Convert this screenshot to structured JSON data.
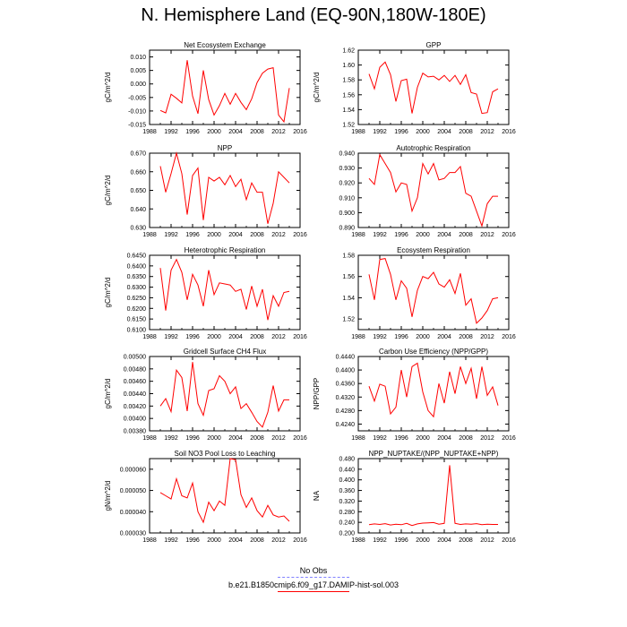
{
  "title": "N. Hemisphere Land (EQ-90N,180W-180E)",
  "legend": [
    {
      "label": "No Obs",
      "color": "#8080ff",
      "style": "dashed"
    },
    {
      "label": "b.e21.B1850cmip6.f09_g17.DAMIP-hist-sol.003",
      "color": "#ff0000",
      "style": "solid"
    }
  ],
  "chart_data": [
    {
      "type": "line",
      "title": "Net Ecosystem Exchange",
      "ylabel": "gC/m^2/d",
      "xlim": [
        1988,
        2016
      ],
      "ylim": [
        -0.015,
        0.0125
      ],
      "xticks": [
        "1988",
        "1992",
        "1996",
        "2000",
        "2004",
        "2008",
        "2012",
        "2016"
      ],
      "yticks": [
        "-0.015",
        "-0.010",
        "-0.005",
        "0.000",
        "0.005",
        "0.010"
      ],
      "yticks_values": [
        -0.015,
        -0.01,
        -0.005,
        0.0,
        0.005,
        0.01
      ],
      "series": [
        {
          "color": "#ff0000",
          "x": [
            1990,
            1991,
            1992,
            1993,
            1994,
            1995,
            1996,
            1997,
            1998,
            1999,
            2000,
            2001,
            2002,
            2003,
            2004,
            2005,
            2006,
            2007,
            2008,
            2009,
            2010,
            2011,
            2012,
            2013,
            2014
          ],
          "y": [
            -0.0098,
            -0.0107,
            -0.0038,
            -0.0053,
            -0.007,
            0.0088,
            -0.0045,
            -0.011,
            0.005,
            -0.0058,
            -0.0115,
            -0.008,
            -0.0035,
            -0.0075,
            -0.0035,
            -0.0068,
            -0.0095,
            -0.0055,
            0.0005,
            0.004,
            0.0055,
            0.006,
            -0.0115,
            -0.014,
            -0.0015
          ]
        }
      ]
    },
    {
      "type": "line",
      "title": "GPP",
      "ylabel": "gC/m^2/d",
      "xlim": [
        1988,
        2016
      ],
      "ylim": [
        1.52,
        1.62
      ],
      "xticks": [
        "1988",
        "1992",
        "1996",
        "2000",
        "2004",
        "2008",
        "2012",
        "2016"
      ],
      "yticks": [
        "1.52",
        "1.54",
        "1.56",
        "1.58",
        "1.60",
        "1.62"
      ],
      "yticks_values": [
        1.52,
        1.54,
        1.56,
        1.58,
        1.6,
        1.62
      ],
      "series": [
        {
          "color": "#ff0000",
          "x": [
            1990,
            1991,
            1992,
            1993,
            1994,
            1995,
            1996,
            1997,
            1998,
            1999,
            2000,
            2001,
            2002,
            2003,
            2004,
            2005,
            2006,
            2007,
            2008,
            2009,
            2010,
            2011,
            2012,
            2013,
            2014
          ],
          "y": [
            1.588,
            1.568,
            1.597,
            1.604,
            1.587,
            1.551,
            1.579,
            1.581,
            1.535,
            1.57,
            1.589,
            1.584,
            1.585,
            1.58,
            1.586,
            1.578,
            1.586,
            1.574,
            1.587,
            1.563,
            1.561,
            1.535,
            1.536,
            1.564,
            1.568
          ]
        }
      ]
    },
    {
      "type": "line",
      "title": "NPP",
      "ylabel": "gC/m^2/d",
      "xlim": [
        1988,
        2016
      ],
      "ylim": [
        0.63,
        0.67
      ],
      "xticks": [
        "1988",
        "1992",
        "1996",
        "2000",
        "2004",
        "2008",
        "2012",
        "2016"
      ],
      "yticks": [
        "0.630",
        "0.640",
        "0.650",
        "0.660",
        "0.670"
      ],
      "yticks_values": [
        0.63,
        0.64,
        0.65,
        0.66,
        0.67
      ],
      "series": [
        {
          "color": "#ff0000",
          "x": [
            1990,
            1991,
            1992,
            1993,
            1994,
            1995,
            1996,
            1997,
            1998,
            1999,
            2000,
            2001,
            2002,
            2003,
            2004,
            2005,
            2006,
            2007,
            2008,
            2009,
            2010,
            2011,
            2012,
            2013,
            2014
          ],
          "y": [
            0.663,
            0.649,
            0.659,
            0.67,
            0.659,
            0.637,
            0.658,
            0.662,
            0.634,
            0.657,
            0.655,
            0.657,
            0.653,
            0.658,
            0.652,
            0.656,
            0.645,
            0.654,
            0.649,
            0.649,
            0.632,
            0.643,
            0.66,
            0.657,
            0.654
          ]
        }
      ]
    },
    {
      "type": "line",
      "title": "Autotrophic Respiration",
      "ylabel": "",
      "xlim": [
        1988,
        2016
      ],
      "ylim": [
        0.89,
        0.94
      ],
      "xticks": [
        "1988",
        "1992",
        "1996",
        "2000",
        "2004",
        "2008",
        "2012",
        "2016"
      ],
      "yticks": [
        "0.890",
        "0.900",
        "0.910",
        "0.920",
        "0.930",
        "0.940"
      ],
      "yticks_values": [
        0.89,
        0.9,
        0.91,
        0.92,
        0.93,
        0.94
      ],
      "series": [
        {
          "color": "#ff0000",
          "x": [
            1990,
            1991,
            1992,
            1993,
            1994,
            1995,
            1996,
            1997,
            1998,
            1999,
            2000,
            2001,
            2002,
            2003,
            2004,
            2005,
            2006,
            2007,
            2008,
            2009,
            2010,
            2011,
            2012,
            2013,
            2014
          ],
          "y": [
            0.923,
            0.919,
            0.939,
            0.933,
            0.927,
            0.914,
            0.92,
            0.919,
            0.901,
            0.91,
            0.933,
            0.926,
            0.933,
            0.922,
            0.923,
            0.927,
            0.927,
            0.931,
            0.913,
            0.911,
            0.901,
            0.891,
            0.906,
            0.911,
            0.911
          ]
        }
      ]
    },
    {
      "type": "line",
      "title": "Heterotrophic Respiration",
      "ylabel": "gC/m^2/d",
      "xlim": [
        1988,
        2016
      ],
      "ylim": [
        0.61,
        0.645
      ],
      "xticks": [
        "1988",
        "1992",
        "1996",
        "2000",
        "2004",
        "2008",
        "2012",
        "2016"
      ],
      "yticks": [
        "0.6100",
        "0.6150",
        "0.6200",
        "0.6250",
        "0.6300",
        "0.6350",
        "0.6400",
        "0.6450"
      ],
      "yticks_values": [
        0.61,
        0.615,
        0.62,
        0.625,
        0.63,
        0.635,
        0.64,
        0.645
      ],
      "series": [
        {
          "color": "#ff0000",
          "x": [
            1990,
            1991,
            1992,
            1993,
            1994,
            1995,
            1996,
            1997,
            1998,
            1999,
            2000,
            2001,
            2002,
            2003,
            2004,
            2005,
            2006,
            2007,
            2008,
            2009,
            2010,
            2011,
            2012,
            2013,
            2014
          ],
          "y": [
            0.639,
            0.619,
            0.638,
            0.643,
            0.637,
            0.624,
            0.636,
            0.631,
            0.621,
            0.638,
            0.6265,
            0.632,
            0.6315,
            0.631,
            0.628,
            0.629,
            0.6195,
            0.6305,
            0.621,
            0.629,
            0.6145,
            0.626,
            0.621,
            0.6275,
            0.628
          ]
        }
      ]
    },
    {
      "type": "line",
      "title": "Ecosystem Respiration",
      "ylabel": "",
      "xlim": [
        1988,
        2016
      ],
      "ylim": [
        1.51,
        1.58
      ],
      "xticks": [
        "1988",
        "1992",
        "1996",
        "2000",
        "2004",
        "2008",
        "2012",
        "2016"
      ],
      "yticks": [
        "1.52",
        "1.54",
        "1.56",
        "1.58"
      ],
      "yticks_values": [
        1.52,
        1.54,
        1.56,
        1.58
      ],
      "series": [
        {
          "color": "#ff0000",
          "x": [
            1990,
            1991,
            1992,
            1993,
            1994,
            1995,
            1996,
            1997,
            1998,
            1999,
            2000,
            2001,
            2002,
            2003,
            2004,
            2005,
            2006,
            2007,
            2008,
            2009,
            2010,
            2011,
            2012,
            2013,
            2014
          ],
          "y": [
            1.562,
            1.538,
            1.576,
            1.577,
            1.562,
            1.538,
            1.556,
            1.549,
            1.522,
            1.547,
            1.56,
            1.558,
            1.564,
            1.553,
            1.55,
            1.557,
            1.544,
            1.563,
            1.533,
            1.539,
            1.516,
            1.521,
            1.528,
            1.539,
            1.54
          ]
        }
      ]
    },
    {
      "type": "line",
      "title": "Gridcell Surface CH4 Flux",
      "ylabel": "gC/m^2/d",
      "xlim": [
        1988,
        2016
      ],
      "ylim": [
        0.0038,
        0.005
      ],
      "xticks": [
        "1988",
        "1992",
        "1996",
        "2000",
        "2004",
        "2008",
        "2012",
        "2016"
      ],
      "yticks": [
        "0.00380",
        "0.00400",
        "0.00420",
        "0.00440",
        "0.00460",
        "0.00480",
        "0.00500"
      ],
      "yticks_values": [
        0.0038,
        0.004,
        0.0042,
        0.0044,
        0.0046,
        0.0048,
        0.005
      ],
      "series": [
        {
          "color": "#ff0000",
          "x": [
            1990,
            1991,
            1992,
            1993,
            1994,
            1995,
            1996,
            1997,
            1998,
            1999,
            2000,
            2001,
            2002,
            2003,
            2004,
            2005,
            2006,
            2007,
            2008,
            2009,
            2010,
            2011,
            2012,
            2013,
            2014
          ],
          "y": [
            0.0042,
            0.00432,
            0.00411,
            0.00478,
            0.00466,
            0.00412,
            0.00491,
            0.00424,
            0.00405,
            0.00445,
            0.00448,
            0.00469,
            0.0046,
            0.0044,
            0.00451,
            0.00416,
            0.00424,
            0.0041,
            0.00395,
            0.00386,
            0.0041,
            0.00453,
            0.00412,
            0.0043,
            0.0043
          ]
        }
      ]
    },
    {
      "type": "line",
      "title": "Carbon Use Efficiency (NPP/GPP)",
      "ylabel": "NPP/GPP",
      "xlim": [
        1988,
        2016
      ],
      "ylim": [
        0.422,
        0.444
      ],
      "xticks": [
        "1988",
        "1992",
        "1996",
        "2000",
        "2004",
        "2008",
        "2012",
        "2016"
      ],
      "yticks": [
        "0.4240",
        "0.4280",
        "0.4320",
        "0.4360",
        "0.4400",
        "0.4440"
      ],
      "yticks_values": [
        0.424,
        0.428,
        0.432,
        0.436,
        0.44,
        0.444
      ],
      "series": [
        {
          "color": "#ff0000",
          "x": [
            1990,
            1991,
            1992,
            1993,
            1994,
            1995,
            1996,
            1997,
            1998,
            1999,
            2000,
            2001,
            2002,
            2003,
            2004,
            2005,
            2006,
            2007,
            2008,
            2009,
            2010,
            2011,
            2012,
            2013,
            2014
          ],
          "y": [
            0.4352,
            0.4308,
            0.4358,
            0.4352,
            0.427,
            0.429,
            0.44,
            0.432,
            0.441,
            0.442,
            0.4335,
            0.428,
            0.4262,
            0.436,
            0.4302,
            0.4395,
            0.433,
            0.441,
            0.436,
            0.4405,
            0.4315,
            0.441,
            0.4325,
            0.435,
            0.4295
          ]
        }
      ]
    },
    {
      "type": "line",
      "title": "Soil NO3 Pool Loss to Leaching",
      "ylabel": "gN/m^2/d",
      "xlim": [
        1988,
        2016
      ],
      "ylim": [
        3e-05,
        6.5e-05
      ],
      "xticks": [
        "1988",
        "1992",
        "1996",
        "2000",
        "2004",
        "2008",
        "2012",
        "2016"
      ],
      "yticks": [
        "0.000030",
        "0.000040",
        "0.000050",
        "0.000060"
      ],
      "yticks_values": [
        3e-05,
        4e-05,
        5e-05,
        6e-05
      ],
      "series": [
        {
          "color": "#ff0000",
          "x": [
            1990,
            1991,
            1992,
            1993,
            1994,
            1995,
            1996,
            1997,
            1998,
            1999,
            2000,
            2001,
            2002,
            2003,
            2004,
            2005,
            2006,
            2007,
            2008,
            2009,
            2010,
            2011,
            2012,
            2013,
            2014
          ],
          "y": [
            4.9e-05,
            4.75e-05,
            4.6e-05,
            5.55e-05,
            4.75e-05,
            4.65e-05,
            5.35e-05,
            4e-05,
            3.5e-05,
            4.45e-05,
            4.05e-05,
            4.5e-05,
            4.3e-05,
            6.5e-05,
            6.45e-05,
            4.8e-05,
            4.2e-05,
            4.65e-05,
            4.05e-05,
            3.75e-05,
            4.3e-05,
            3.85e-05,
            3.75e-05,
            3.8e-05,
            3.55e-05
          ]
        }
      ]
    },
    {
      "type": "line",
      "title": "NPP_NUPTAKE/(NPP_NUPTAKE+NPP)",
      "ylabel": "NA",
      "xlim": [
        1988,
        2016
      ],
      "ylim": [
        0.2,
        0.48
      ],
      "xticks": [
        "1988",
        "1992",
        "1996",
        "2000",
        "2004",
        "2008",
        "2012",
        "2016"
      ],
      "yticks": [
        "0.200",
        "0.240",
        "0.280",
        "0.320",
        "0.360",
        "0.400",
        "0.440",
        "0.480"
      ],
      "yticks_values": [
        0.2,
        0.24,
        0.28,
        0.32,
        0.36,
        0.4,
        0.44,
        0.48
      ],
      "series": [
        {
          "color": "#ff0000",
          "x": [
            1990,
            1991,
            1992,
            1993,
            1994,
            1995,
            1996,
            1997,
            1998,
            1999,
            2000,
            2001,
            2002,
            2003,
            2004,
            2005,
            2006,
            2007,
            2008,
            2009,
            2010,
            2011,
            2012,
            2013,
            2014
          ],
          "y": [
            0.231,
            0.234,
            0.232,
            0.235,
            0.23,
            0.233,
            0.231,
            0.236,
            0.228,
            0.234,
            0.237,
            0.238,
            0.239,
            0.233,
            0.236,
            0.455,
            0.236,
            0.232,
            0.234,
            0.233,
            0.235,
            0.231,
            0.233,
            0.232,
            0.232
          ]
        }
      ]
    }
  ]
}
